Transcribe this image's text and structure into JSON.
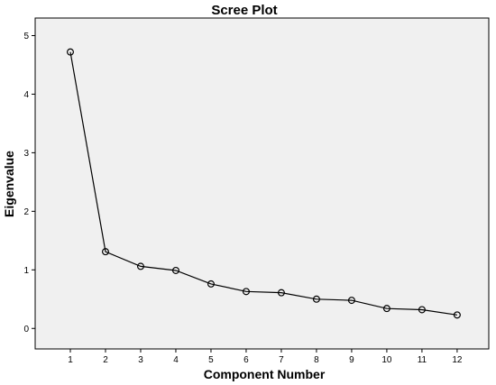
{
  "chart_data": {
    "type": "line",
    "title": "Scree Plot",
    "xlabel": "Component Number",
    "ylabel": "Eigenvalue",
    "x": [
      1,
      2,
      3,
      4,
      5,
      6,
      7,
      8,
      9,
      10,
      11,
      12
    ],
    "series": [
      {
        "values": [
          4.72,
          1.31,
          1.06,
          0.99,
          0.76,
          0.63,
          0.61,
          0.5,
          0.48,
          0.34,
          0.32,
          0.23
        ]
      }
    ],
    "xticks": [
      "1",
      "2",
      "3",
      "4",
      "5",
      "6",
      "7",
      "8",
      "9",
      "10",
      "11",
      "12"
    ],
    "yticks": [
      "0",
      "1",
      "2",
      "3",
      "4",
      "5"
    ],
    "xlim": [
      0,
      12.9
    ],
    "ylim": [
      -0.35,
      5.3
    ],
    "grid": false,
    "legend": "none",
    "colors": {
      "plot_background": "#f0f0f0",
      "line": "#000000",
      "marker": "#000000"
    }
  }
}
